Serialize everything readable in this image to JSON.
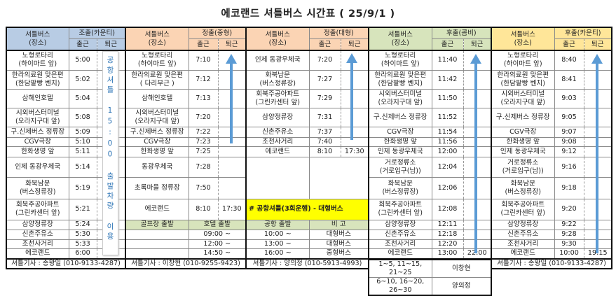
{
  "title": "에코랜드 셔틀버스 시간표 ( 25/9/1 )",
  "arrow_color": "#5b9bd5",
  "blocks": [
    {
      "color": "#b8cce4",
      "header": {
        "place": "셔틀버스\n(장소)",
        "route": "조출(카운티)",
        "in": "출근",
        "out": "퇴근"
      },
      "note": "공항셔틀 15:00 출발차량 이용",
      "rows": [
        {
          "place": "노형로타리\n(하이마트 앞)",
          "in": "5:00",
          "out": ""
        },
        {
          "place": "한라의료원 맞은편\n(한담팥빵 벤치)",
          "in": "5:02",
          "out": ""
        },
        {
          "place": "삼해인호텔",
          "in": "5:04",
          "out": ""
        },
        {
          "place": "시외버스터미널\n(오라지구대 앞)",
          "in": "5:08",
          "out": ""
        },
        {
          "place": "구.신제버스 정류장",
          "in": "5:09",
          "out": ""
        },
        {
          "place": "CGV극장",
          "in": "5:10",
          "out": ""
        },
        {
          "place": "한화생명 앞",
          "in": "5:11",
          "out": ""
        },
        {
          "place": "인제 동광우체국",
          "in": "5:14",
          "out": ""
        },
        {
          "place": "화북남문\n(버스정류장)",
          "in": "5:19",
          "out": ""
        },
        {
          "place": "회북주공아파트\n(그린카센터 앞)",
          "in": "5:21",
          "out": ""
        },
        {
          "place": "삼양정류장",
          "in": "5:24",
          "out": ""
        },
        {
          "place": "신촌주유소",
          "in": "5:30",
          "out": ""
        },
        {
          "place": "조천사거리",
          "in": "5:33",
          "out": ""
        },
        {
          "place": "에코랜드",
          "in": "6:00",
          "out": ""
        }
      ],
      "driver": "셔틀기사 : 송왕일 (010-9133-4287)"
    },
    {
      "color": "#fbd4b4",
      "header": {
        "place": "셔틀버스\n(장소)",
        "route": "정출(중형)",
        "in": "출근",
        "out": "퇴근"
      },
      "rows": [
        {
          "place": "노형로타리\n(하이마트 앞)",
          "in": "7:10",
          "out": ""
        },
        {
          "place": "한라의료원 맞은편\n( 다리부근 )",
          "in": "7:12",
          "out": ""
        },
        {
          "place": "삼해인호텔",
          "in": "7:13",
          "out": ""
        },
        {
          "place": "시외버스터미널\n(오라지구대 앞)",
          "in": "7:20",
          "out": ""
        },
        {
          "place": "구.신제버스 정류장",
          "in": "7:22",
          "out": ""
        },
        {
          "place": "CGV극장",
          "in": "7:23",
          "out": ""
        },
        {
          "place": "한화생명 앞",
          "in": "7:25",
          "out": ""
        },
        {
          "place": "동광우체국",
          "in": "7:28",
          "out": ""
        },
        {
          "place": "초록마을 정류장",
          "in": "7:50",
          "out": ""
        },
        {
          "place": "에코랜드",
          "in": "8:10",
          "out": "17:30"
        },
        {
          "kind": "green",
          "place": "골프장 출발",
          "span": "호텔 출발"
        },
        {
          "place": "",
          "span": "09:00 ~"
        },
        {
          "place": "",
          "span": "12:00 ~"
        },
        {
          "place": "",
          "span": "14:50 ~"
        }
      ],
      "driver": "셔틀기사 : 이창현 (010-9255-9423)"
    },
    {
      "color": "#fbd4b4",
      "header": {
        "place": "셔틀버스\n(장소)",
        "route": "정출(대형)",
        "in": "출근",
        "out": "퇴근"
      },
      "rows": [
        {
          "place": "인제 동광우체국",
          "in": "7:20",
          "out": ""
        },
        {
          "place": "화북남문\n(버스정류장)",
          "in": "7:27",
          "out": ""
        },
        {
          "place": "회북주공아파트\n(그린카센터 앞)",
          "in": "7:29",
          "out": ""
        },
        {
          "place": "삼양정류장",
          "in": "7:31",
          "out": ""
        },
        {
          "place": "신촌주유소",
          "in": "7:37",
          "out": ""
        },
        {
          "place": "조천사거리",
          "in": "7:40",
          "out": ""
        },
        {
          "place": "에코랜드",
          "in": "8:10",
          "out": "17:30"
        },
        {
          "kind": "blank",
          "place": "",
          "span": ""
        },
        {
          "kind": "yellow",
          "band": "# 공항셔틀(3회운행) - 대형버스"
        },
        {
          "kind": "green",
          "place": "공항 출발",
          "span": "비     고"
        },
        {
          "place": "10:00 ~",
          "span": "대형버스"
        },
        {
          "place": "13:00 ~",
          "span": "대형버스"
        },
        {
          "place": "16:00 ~",
          "span": "중형버스"
        }
      ],
      "driver": "셔틀기사 : 양의정 (010-5913-4993)"
    },
    {
      "color": "#d7e4bc",
      "header": {
        "place": "셔틀버스\n(장소)",
        "route": "후출(콤비)",
        "in": "출근",
        "out": "퇴근"
      },
      "rows": [
        {
          "place": "노형로타리\n(하이마트 앞)",
          "in": "11:40",
          "out": ""
        },
        {
          "place": "한라의료원 맞은편\n(한담팥빵 벤치)",
          "in": "11:42",
          "out": ""
        },
        {
          "place": "시외버스터미널\n(오라지구대 앞)",
          "in": "11:50",
          "out": ""
        },
        {
          "place": "구.신제버스 정류장",
          "in": "11:52",
          "out": ""
        },
        {
          "place": "CGV극장",
          "in": "11:54",
          "out": ""
        },
        {
          "place": "한화생명 앞",
          "in": "11:56",
          "out": ""
        },
        {
          "place": "인제 동광우체국",
          "in": "12:00",
          "out": ""
        },
        {
          "place": "거로정류소\n(거로입구(남))",
          "in": "12:04",
          "out": ""
        },
        {
          "place": "화북남문\n(버스정류장)",
          "in": "12:06",
          "out": ""
        },
        {
          "place": "회북주공아파트\n(그린카센터 앞)",
          "in": "12:08",
          "out": ""
        },
        {
          "place": "삼양정류장",
          "in": "12:11",
          "out": ""
        },
        {
          "place": "신촌주유소",
          "in": "12:18",
          "out": ""
        },
        {
          "place": "조천사거리",
          "in": "12:20",
          "out": ""
        },
        {
          "place": "에코랜드",
          "in": "13:00",
          "out": "22:00"
        }
      ],
      "schedule": [
        {
          "days": "1~5, 11~15, 21~25",
          "driver": "이창현"
        },
        {
          "days": "6~10, 16~20, 26~30",
          "driver": "양의정"
        }
      ]
    },
    {
      "color": "#ffe699",
      "header": {
        "place": "셔틀버스\n(장소)",
        "route": "후출(카운티)",
        "in": "출근",
        "out": "퇴근"
      },
      "rows": [
        {
          "place": "노형로타리\n(하이마트 앞)",
          "in": "8:40",
          "out": ""
        },
        {
          "place": "한라의료원 맞은편\n(한담팥빵 벤치)",
          "in": "8:41",
          "out": ""
        },
        {
          "place": "시외버스터미널\n(오라지구대 앞)",
          "in": "9:03",
          "out": ""
        },
        {
          "place": "구.신제버스 정류장",
          "in": "9:05",
          "out": ""
        },
        {
          "place": "CGV극장",
          "in": "9:07",
          "out": ""
        },
        {
          "place": "한화생명 앞",
          "in": "9:08",
          "out": ""
        },
        {
          "place": "인제 동광우체국",
          "in": "9:12",
          "out": ""
        },
        {
          "place": "거로정류소\n(거로입구(남))",
          "in": "9:16",
          "out": ""
        },
        {
          "place": "화북남문\n(버스정류장)",
          "in": "9:18",
          "out": ""
        },
        {
          "place": "회북주공아파트\n(그린카센터 앞)",
          "in": "9:20",
          "out": ""
        },
        {
          "place": "삼양정류장",
          "in": "9:22",
          "out": ""
        },
        {
          "place": "신촌주유소",
          "in": "9:28",
          "out": ""
        },
        {
          "place": "조천사거리",
          "in": "9:30",
          "out": ""
        },
        {
          "place": "에코랜드",
          "in": "10:00",
          "out": "19:15"
        }
      ],
      "driver": "셔틀기사 : 송왕일 (010-9133-4287)"
    }
  ]
}
